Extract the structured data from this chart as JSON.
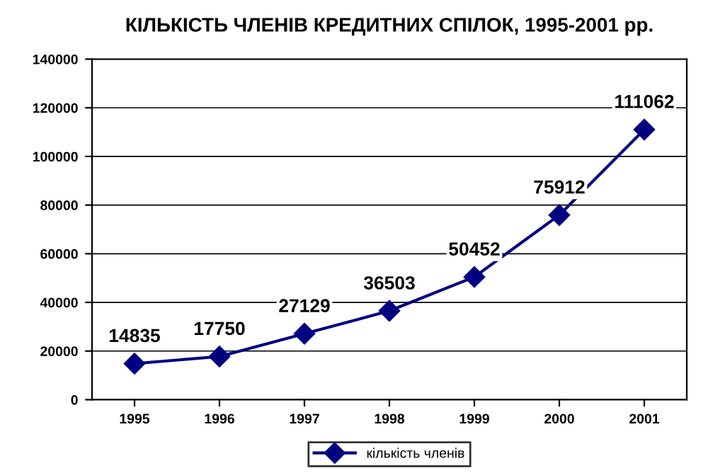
{
  "chart_data": {
    "type": "line",
    "title": "КІЛЬКІСТЬ ЧЛЕНІВ КРЕДИТНИХ СПІЛОК, 1995-2001 рр.",
    "categories": [
      "1995",
      "1996",
      "1997",
      "1998",
      "1999",
      "2000",
      "2001"
    ],
    "series": [
      {
        "name": "кількість членів",
        "color": "#000080",
        "values": [
          14835,
          17750,
          27129,
          36503,
          50452,
          75912,
          111062
        ]
      }
    ],
    "ylim": [
      0,
      140000
    ],
    "yticks": [
      0,
      20000,
      40000,
      60000,
      80000,
      100000,
      120000,
      140000
    ],
    "grid": "y",
    "legend": "bottom",
    "marker": "diamond",
    "line_style": "solid",
    "data_labels": true
  }
}
